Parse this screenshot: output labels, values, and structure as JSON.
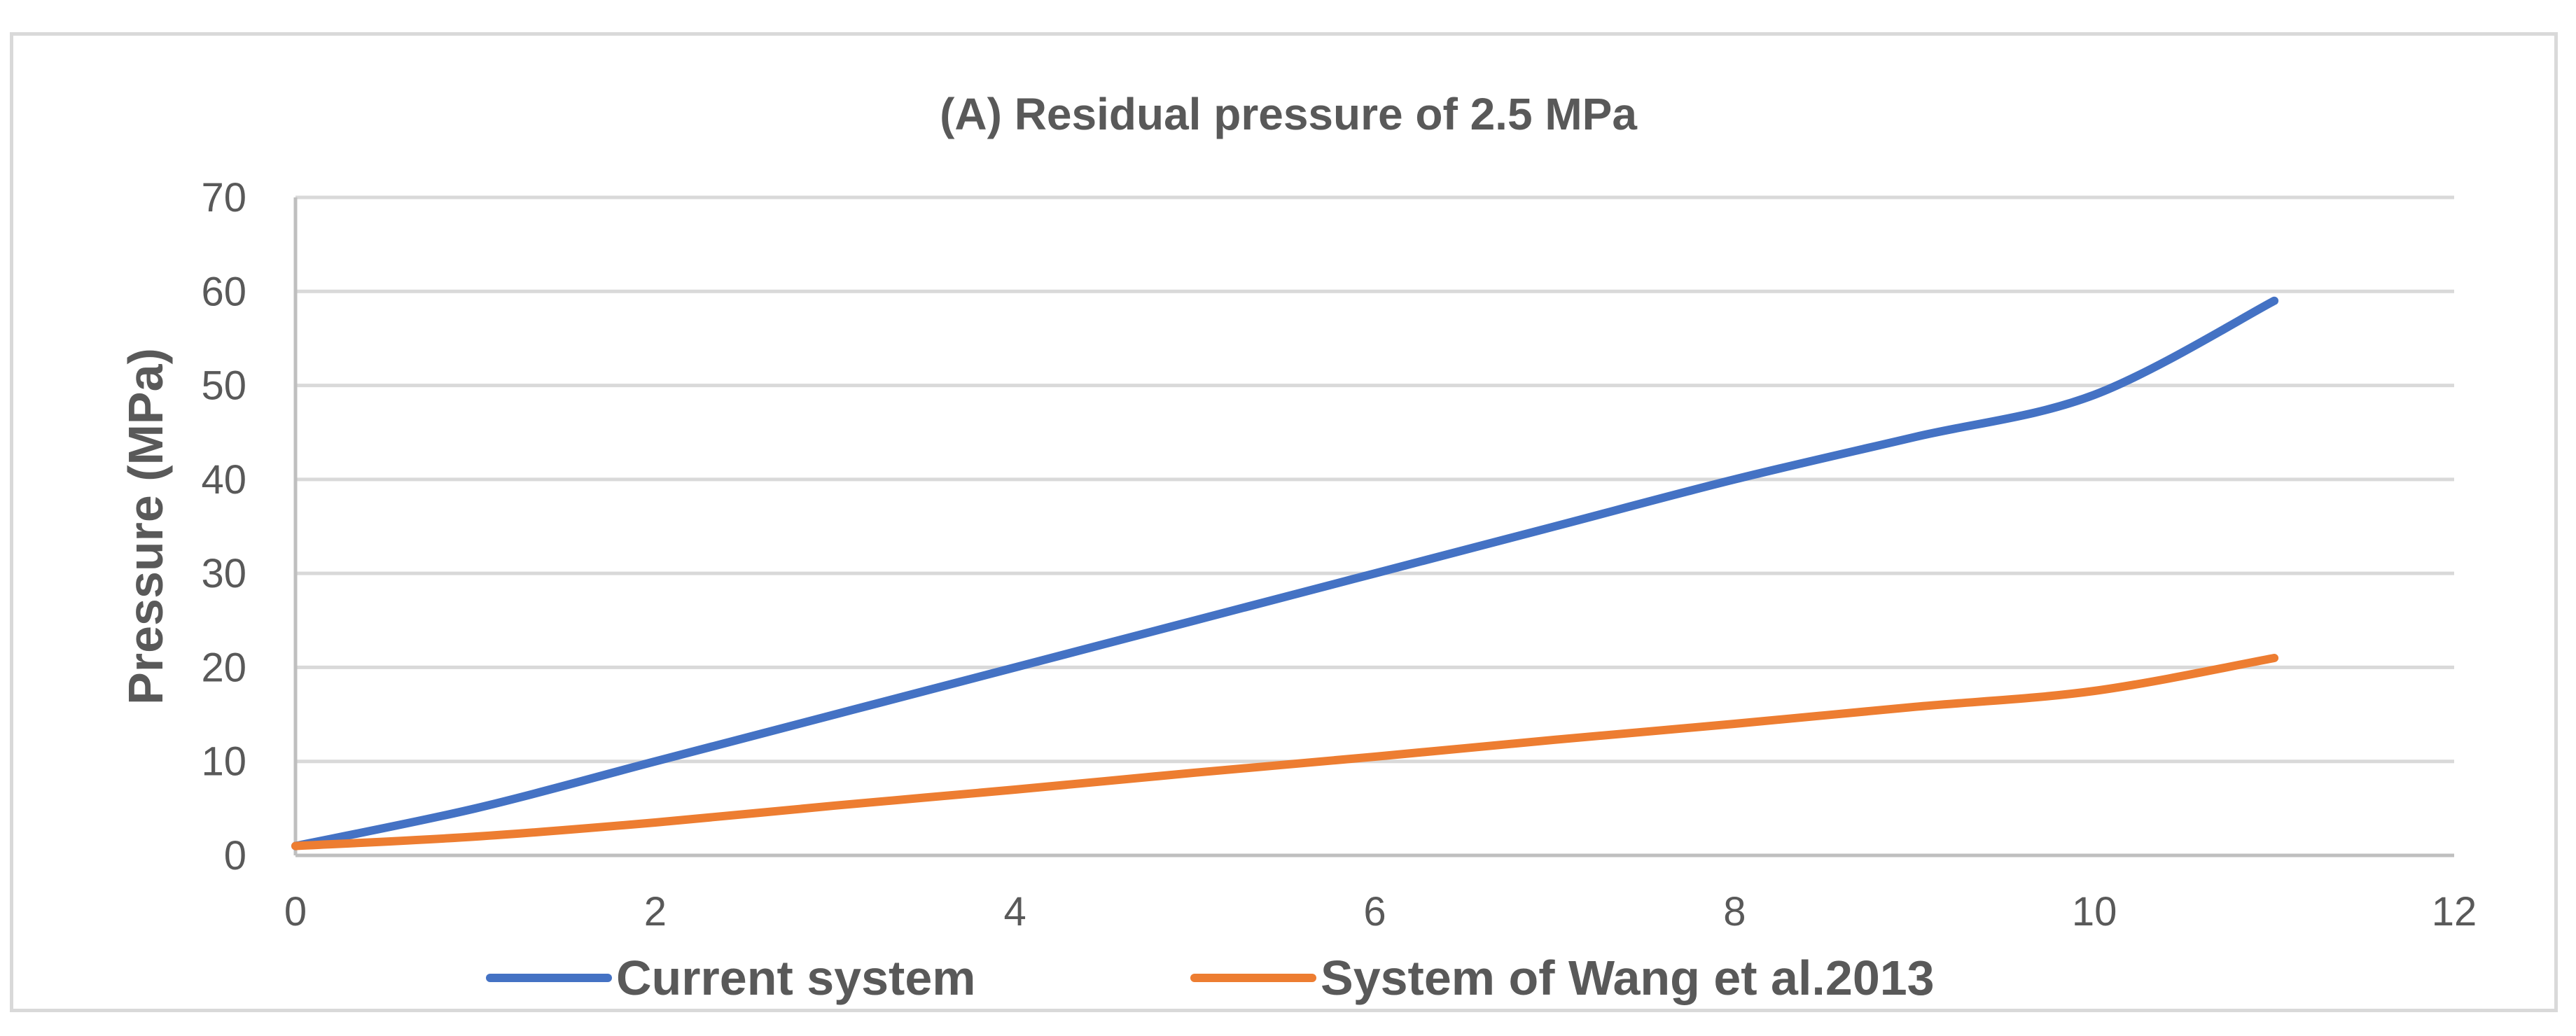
{
  "chart_data": {
    "type": "line",
    "title": "(A) Residual pressure of 2.5 MPa",
    "xlabel": "",
    "ylabel": "Pressure (MPa)",
    "xlim": [
      0,
      12
    ],
    "ylim": [
      0,
      70
    ],
    "xticks": [
      0,
      2,
      4,
      6,
      8,
      10,
      12
    ],
    "yticks": [
      0,
      10,
      20,
      30,
      40,
      50,
      60,
      70
    ],
    "grid": "horizontal",
    "legend_position": "bottom",
    "series": [
      {
        "name": "Current system",
        "color": "#4472c4",
        "x": [
          0,
          1,
          2,
          3,
          4,
          5,
          6,
          7,
          8,
          9,
          10,
          11
        ],
        "y": [
          1,
          5,
          10,
          15,
          20,
          25,
          30,
          35,
          40,
          44.5,
          49,
          59
        ]
      },
      {
        "name": "System of Wang et al.2013",
        "color": "#ed7d31",
        "x": [
          0,
          1,
          2,
          3,
          4,
          5,
          6,
          7,
          8,
          9,
          10,
          11
        ],
        "y": [
          1,
          2,
          3.5,
          5.3,
          7,
          8.8,
          10.5,
          12.3,
          14,
          15.8,
          17.5,
          21
        ]
      }
    ]
  }
}
